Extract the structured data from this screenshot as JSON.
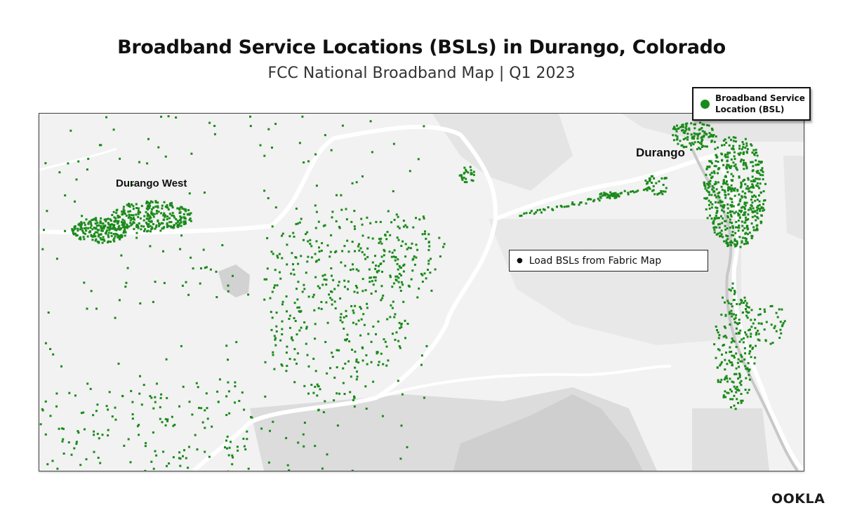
{
  "header": {
    "title": "Broadband Service Locations (BSLs) in Durango, Colorado",
    "subtitle": "FCC National Broadband Map | Q1 2023"
  },
  "map": {
    "places": {
      "durango_west": "Durango West",
      "durango": "Durango"
    },
    "action": {
      "label": "Load BSLs from Fabric Map"
    }
  },
  "legend": {
    "label": "Broadband Service Location (BSL)",
    "marker_color": "#1a8a1a"
  },
  "brand": {
    "logo": "OOKLA"
  }
}
